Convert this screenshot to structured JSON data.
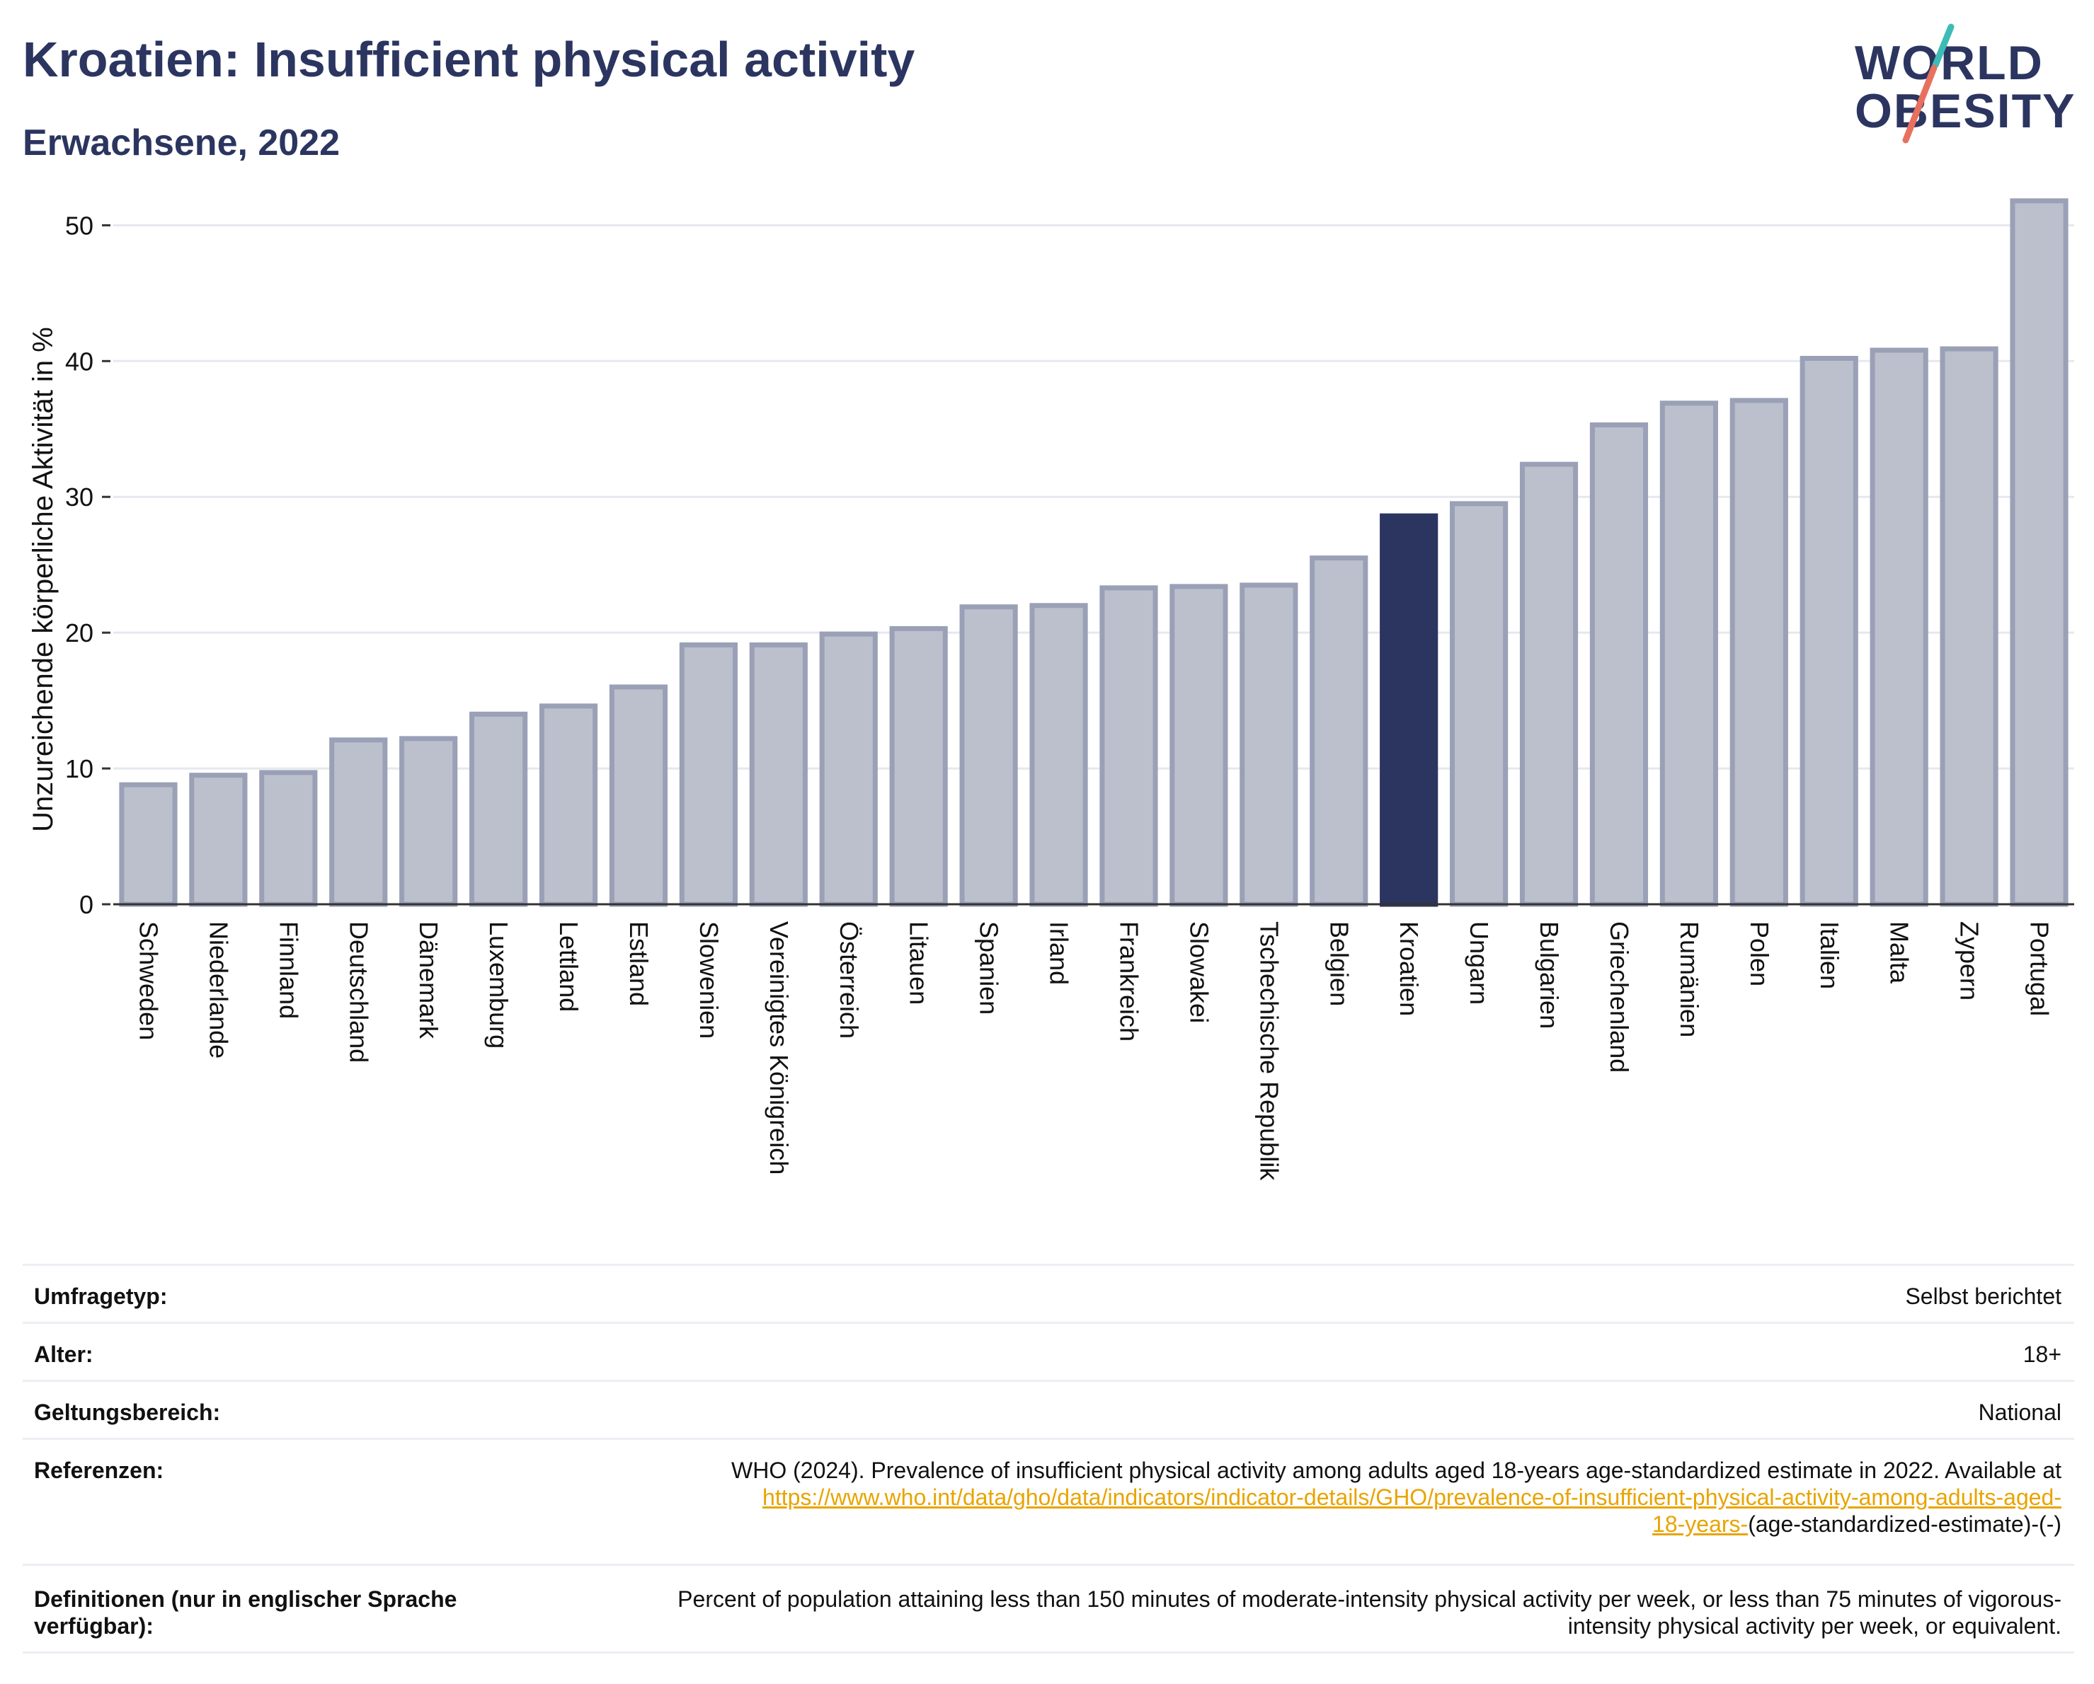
{
  "header": {
    "title": "Kroatien: Insufficient physical activity",
    "subtitle": "Erwachsene, 2022"
  },
  "logo": {
    "line1": "WORLD",
    "line2": "OBESITY"
  },
  "colors": {
    "bar": "#bcc0cd",
    "bar_border": "#9aa0b6",
    "highlight": "#2b3560",
    "axis": "#333333",
    "grid": "#e6e8ef",
    "link": "#e8a400",
    "logo_teal": "#3cbcb4",
    "logo_coral": "#e8705f"
  },
  "chart_data": {
    "type": "bar",
    "title": "",
    "xlabel": "",
    "ylabel": "Unzureichende körperliche Aktivität in %",
    "ylim": [
      0,
      52
    ],
    "yticks": [
      0,
      10,
      20,
      30,
      40,
      50
    ],
    "grid": true,
    "highlight": "Kroatien",
    "categories": [
      "Schweden",
      "Niederlande",
      "Finnland",
      "Deutschland",
      "Dänemark",
      "Luxemburg",
      "Lettland",
      "Estland",
      "Slowenien",
      "Vereinigtes Königreich",
      "Österreich",
      "Litauen",
      "Spanien",
      "Irland",
      "Frankreich",
      "Slowakei",
      "Tschechische Republik",
      "Belgien",
      "Kroatien",
      "Ungarn",
      "Bulgarien",
      "Griechenland",
      "Rumänien",
      "Polen",
      "Italien",
      "Malta",
      "Zypern",
      "Portugal"
    ],
    "values": [
      8.8,
      9.5,
      9.7,
      12.1,
      12.2,
      14.0,
      14.6,
      16.0,
      19.1,
      19.1,
      19.9,
      20.3,
      21.9,
      22.0,
      23.3,
      23.4,
      23.5,
      25.5,
      28.6,
      29.5,
      32.4,
      35.3,
      36.9,
      37.1,
      40.2,
      40.8,
      40.9,
      51.8
    ]
  },
  "info": {
    "survey_label": "Umfragetyp:",
    "survey_value": "Selbst berichtet",
    "age_label": "Alter:",
    "age_value": "18+",
    "scope_label": "Geltungsbereich:",
    "scope_value": "National",
    "ref_label": "Referenzen:",
    "ref_text": "WHO (2024). Prevalence of insufficient physical activity among adults aged 18-years age-standardized estimate in 2022. Available at",
    "ref_link_a": "https://www.who.int/data/gho/data/indicators/indicator-details/GHO/prevalence-of-insufficient-physical-activity-among-adults-aged-",
    "ref_link_b": "18-years-",
    "ref_suffix": "(age-standardized-estimate)-(-)",
    "def_label": "Definitionen (nur in englischer Sprache verfügbar):",
    "def_text": "Percent of population attaining less than 150 minutes of moderate-intensity physical activity per week, or less than 75 minutes of vigorous-intensity physical activity per week, or equivalent."
  }
}
